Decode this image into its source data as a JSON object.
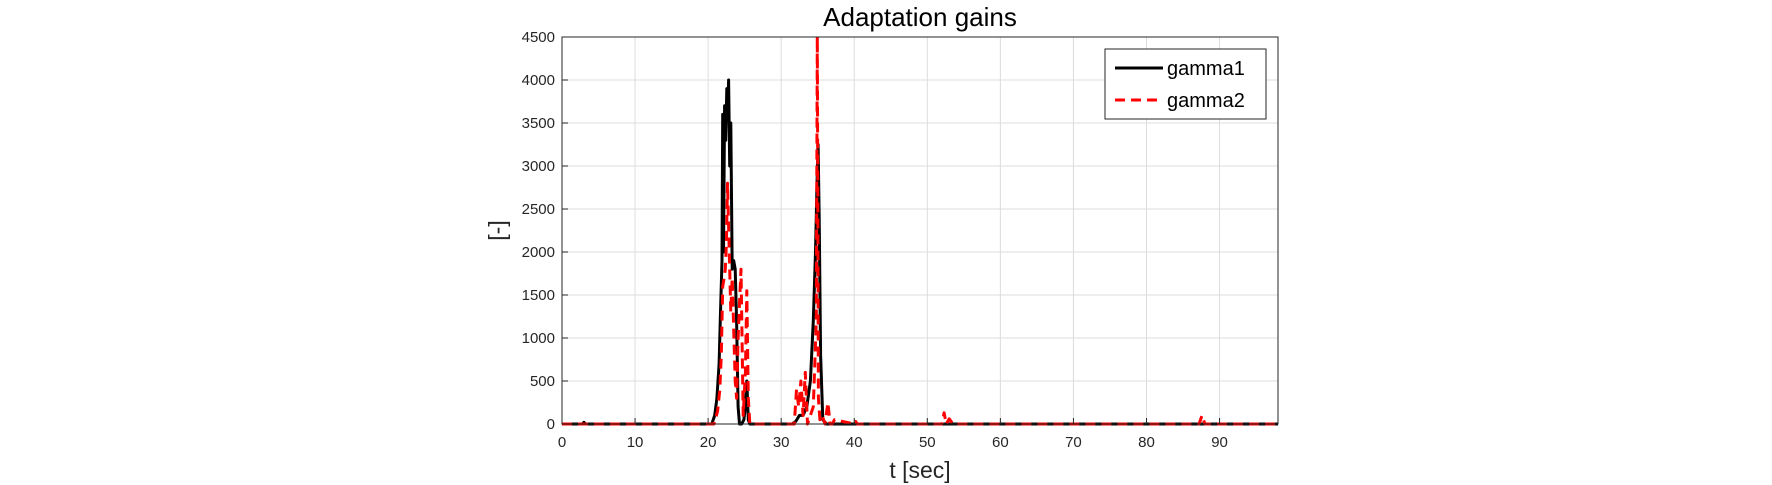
{
  "chart_data": {
    "type": "line",
    "title": "Adaptation gains",
    "xlabel": "t [sec]",
    "ylabel": "[-]",
    "xlim": [
      0,
      98
    ],
    "ylim": [
      0,
      4500
    ],
    "x_ticks": [
      0,
      10,
      20,
      30,
      40,
      50,
      60,
      70,
      80,
      90
    ],
    "y_ticks": [
      0,
      500,
      1000,
      1500,
      2000,
      2500,
      3000,
      3500,
      4000,
      4500
    ],
    "grid": true,
    "legend_position": "top-right",
    "series": [
      {
        "name": "gamma1",
        "color": "#000000",
        "style": "solid",
        "x": [
          0,
          2.8,
          3.0,
          3.2,
          20.5,
          20.9,
          21.2,
          21.5,
          21.7,
          21.9,
          22.0,
          22.1,
          22.25,
          22.4,
          22.55,
          22.7,
          22.8,
          22.95,
          23.1,
          23.3,
          23.5,
          23.7,
          23.9,
          24.1,
          24.3,
          24.6,
          24.9,
          25.1,
          25.3,
          25.5,
          25.7,
          26.0,
          31.5,
          32.0,
          32.5,
          33.0,
          33.5,
          34.0,
          34.4,
          34.7,
          34.9,
          35.05,
          35.2,
          35.4,
          35.7,
          36.2,
          98
        ],
        "y": [
          0,
          0,
          20,
          0,
          0,
          100,
          300,
          700,
          1300,
          1900,
          3600,
          2000,
          3700,
          3300,
          3900,
          3600,
          4000,
          3000,
          3500,
          1800,
          1900,
          1800,
          1200,
          200,
          0,
          0,
          50,
          200,
          500,
          50,
          0,
          0,
          0,
          30,
          100,
          100,
          200,
          500,
          1200,
          2000,
          2800,
          3250,
          2400,
          800,
          50,
          0,
          0
        ]
      },
      {
        "name": "gamma2",
        "color": "#ff0000",
        "style": "dashed",
        "x": [
          0,
          20.8,
          21.3,
          21.6,
          21.8,
          22.0,
          22.2,
          22.35,
          22.5,
          22.65,
          22.8,
          22.95,
          23.1,
          23.3,
          23.5,
          23.7,
          23.9,
          24.1,
          24.3,
          24.5,
          24.8,
          25.1,
          25.3,
          25.5,
          25.7,
          26.0,
          31.8,
          32.1,
          32.4,
          32.7,
          33.0,
          33.3,
          33.6,
          34.0,
          34.4,
          34.8,
          34.95,
          35.1,
          35.3,
          35.6,
          36.0,
          36.4,
          36.7,
          37.0,
          37.3,
          40,
          40.2,
          40.4,
          52.0,
          52.3,
          52.6,
          53.0,
          53.5,
          54,
          87.2,
          87.6,
          88.0,
          98
        ],
        "y": [
          0,
          0,
          150,
          400,
          800,
          1600,
          1700,
          1800,
          2100,
          2800,
          2300,
          1800,
          1300,
          1700,
          1100,
          500,
          300,
          1000,
          1400,
          1800,
          100,
          600,
          1550,
          300,
          0,
          0,
          0,
          400,
          200,
          500,
          100,
          600,
          0,
          100,
          200,
          1200,
          4500,
          300,
          50,
          100,
          0,
          250,
          0,
          0,
          50,
          0,
          30,
          0,
          0,
          130,
          0,
          60,
          0,
          0,
          0,
          100,
          0,
          0
        ]
      }
    ]
  }
}
